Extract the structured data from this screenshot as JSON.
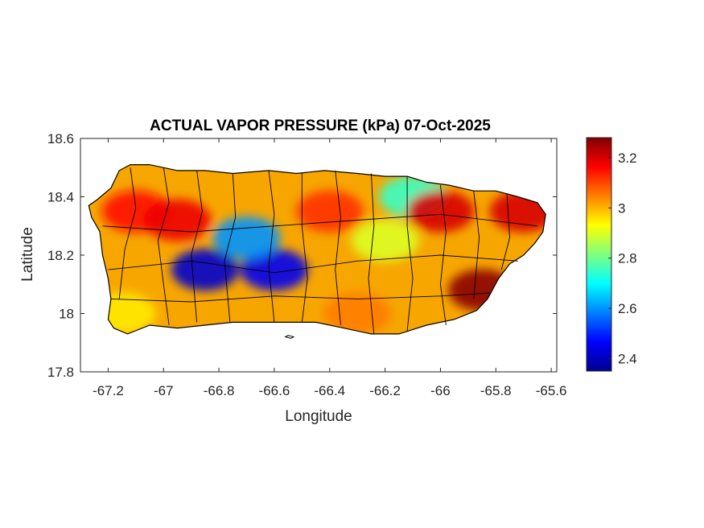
{
  "chart_data": {
    "type": "heatmap",
    "title": "ACTUAL VAPOR PRESSURE (kPa) 07-Oct-2025",
    "xlabel": "Longitude",
    "ylabel": "Latitude",
    "xlim": [
      -67.3,
      -65.58
    ],
    "ylim": [
      17.8,
      18.6
    ],
    "xticks": [
      -67.2,
      -67,
      -66.8,
      -66.6,
      -66.4,
      -66.2,
      -66,
      -65.8,
      -65.6
    ],
    "xtick_labels": [
      "-67.2",
      "-67",
      "-66.8",
      "-66.6",
      "-66.4",
      "-66.2",
      "-66",
      "-65.8",
      "-65.6"
    ],
    "yticks": [
      17.8,
      18,
      18.2,
      18.4,
      18.6
    ],
    "ytick_labels": [
      "17.8",
      "18",
      "18.2",
      "18.4",
      "18.6"
    ],
    "colorbar": {
      "colormap": "jet",
      "range": [
        2.35,
        3.28
      ],
      "ticks": [
        2.4,
        2.6,
        2.8,
        3,
        3.2
      ],
      "tick_labels": [
        "2.4",
        "2.6",
        "2.8",
        "3",
        "3.2"
      ]
    },
    "grid": false,
    "region_values_kPa": [
      {
        "lon": -67.1,
        "lat": 18.35,
        "value": 3.15
      },
      {
        "lon": -66.95,
        "lat": 18.32,
        "value": 3.18
      },
      {
        "lon": -66.85,
        "lat": 18.15,
        "value": 2.42
      },
      {
        "lon": -66.6,
        "lat": 18.15,
        "value": 2.45
      },
      {
        "lon": -66.7,
        "lat": 18.26,
        "value": 2.6
      },
      {
        "lon": -66.4,
        "lat": 18.35,
        "value": 3.12
      },
      {
        "lon": -66.1,
        "lat": 18.4,
        "value": 2.75
      },
      {
        "lon": -66.0,
        "lat": 18.35,
        "value": 3.2
      },
      {
        "lon": -65.85,
        "lat": 18.08,
        "value": 3.27
      },
      {
        "lon": -65.7,
        "lat": 18.35,
        "value": 3.2
      },
      {
        "lon": -67.15,
        "lat": 18.0,
        "value": 2.95
      },
      {
        "lon": -66.3,
        "lat": 18.0,
        "value": 3.05
      },
      {
        "lon": -66.2,
        "lat": 18.25,
        "value": 2.9
      }
    ]
  }
}
